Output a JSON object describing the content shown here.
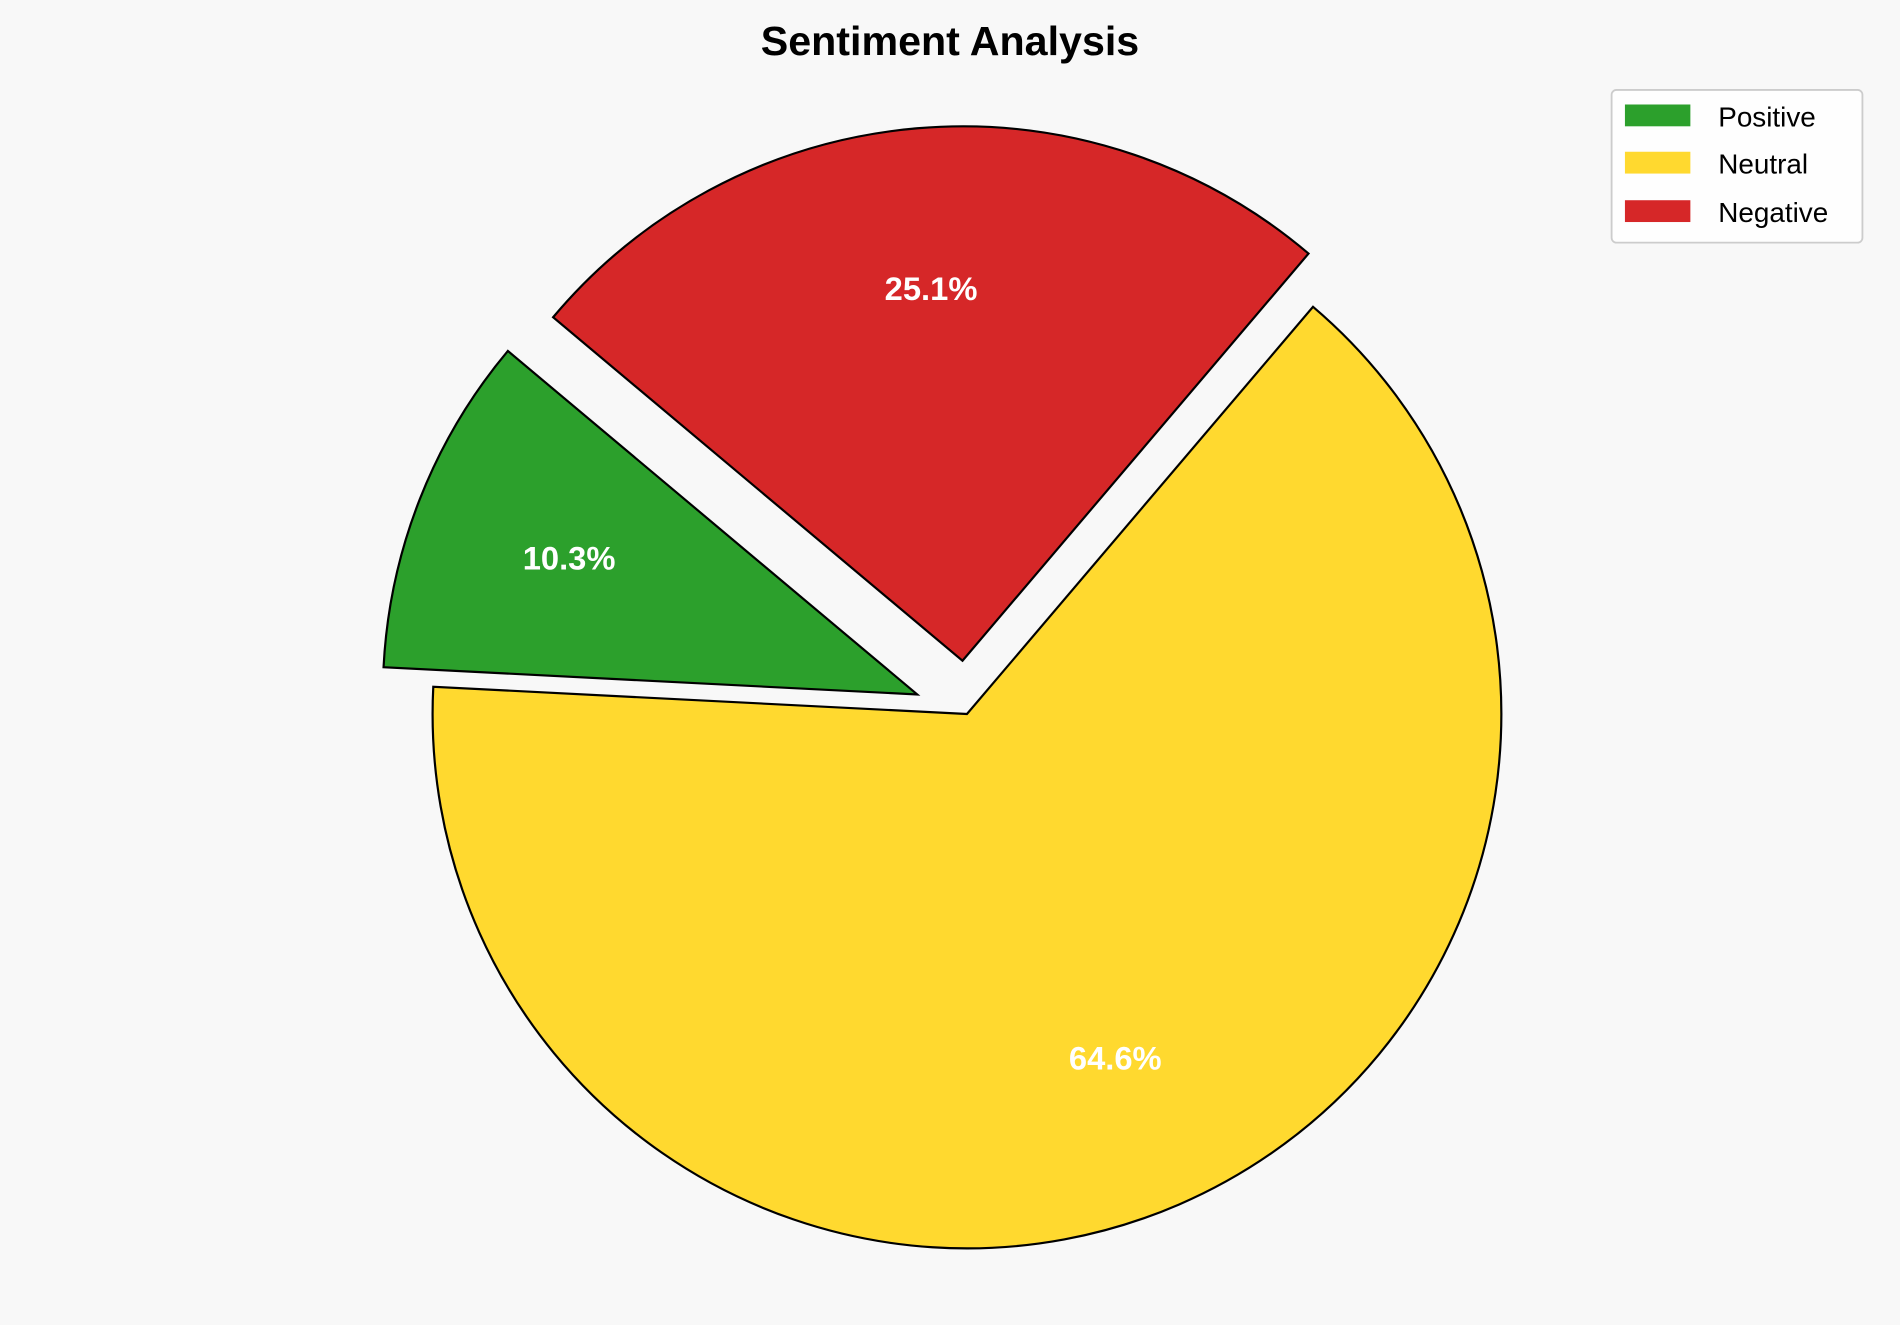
{
  "chart_data": {
    "type": "pie",
    "title": "Sentiment Analysis",
    "categories": [
      "Positive",
      "Neutral",
      "Negative"
    ],
    "values": [
      10.3,
      64.6,
      25.1
    ],
    "labels": [
      "10.3%",
      "64.6%",
      "25.1%"
    ],
    "colors": [
      "#2ca02c",
      "#ffd92f",
      "#d62728"
    ],
    "explode": [
      0.1,
      0,
      0.1
    ],
    "start_angle": 140,
    "legend_position": "top-right"
  }
}
